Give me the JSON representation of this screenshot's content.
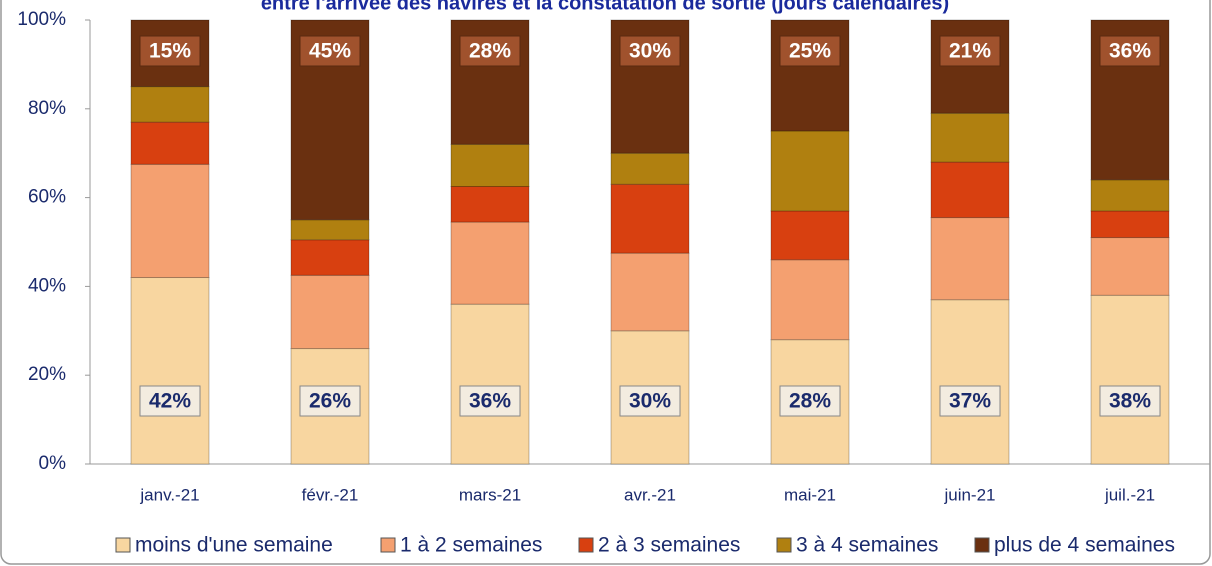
{
  "chart_data": {
    "type": "stacked_bar",
    "title": "entre l'arrivée des navires et la constatation de sortie (jours calendaires)",
    "categories": [
      "janv.-21",
      "févr.-21",
      "mars-21",
      "avr.-21",
      "mai-21",
      "juin-21",
      "juil.-21"
    ],
    "series": [
      {
        "name": "moins d'une semaine",
        "color": "#f8d6a0",
        "values": [
          42,
          26,
          36,
          30,
          28,
          37,
          38
        ],
        "value_labels": [
          "42%",
          "26%",
          "36%",
          "30%",
          "28%",
          "37%",
          "38%"
        ]
      },
      {
        "name": "1 à 2 semaines",
        "color": "#f4a070",
        "values": [
          25.5,
          16.5,
          18.5,
          17.5,
          18,
          18.5,
          13
        ]
      },
      {
        "name": "2 à 3 semaines",
        "color": "#d84010",
        "values": [
          9.5,
          8,
          8,
          15.5,
          11,
          12.5,
          6
        ]
      },
      {
        "name": "3 à 4 semaines",
        "color": "#b08010",
        "values": [
          8,
          4.5,
          9.5,
          7,
          18,
          11,
          7
        ]
      },
      {
        "name": "plus de 4 semaines",
        "color": "#6a3010",
        "values": [
          15,
          45,
          28,
          30,
          25,
          21,
          36
        ],
        "value_labels": [
          "15%",
          "45%",
          "28%",
          "30%",
          "25%",
          "21%",
          "36%"
        ]
      }
    ],
    "ylim": [
      0,
      100
    ],
    "yticks": [
      {
        "value": 0,
        "label": "0%"
      },
      {
        "value": 20,
        "label": "20%"
      },
      {
        "value": 40,
        "label": "40%"
      },
      {
        "value": 60,
        "label": "60%"
      },
      {
        "value": 80,
        "label": "80%"
      },
      {
        "value": 100,
        "label": "100%"
      }
    ],
    "legend": "bottom"
  }
}
